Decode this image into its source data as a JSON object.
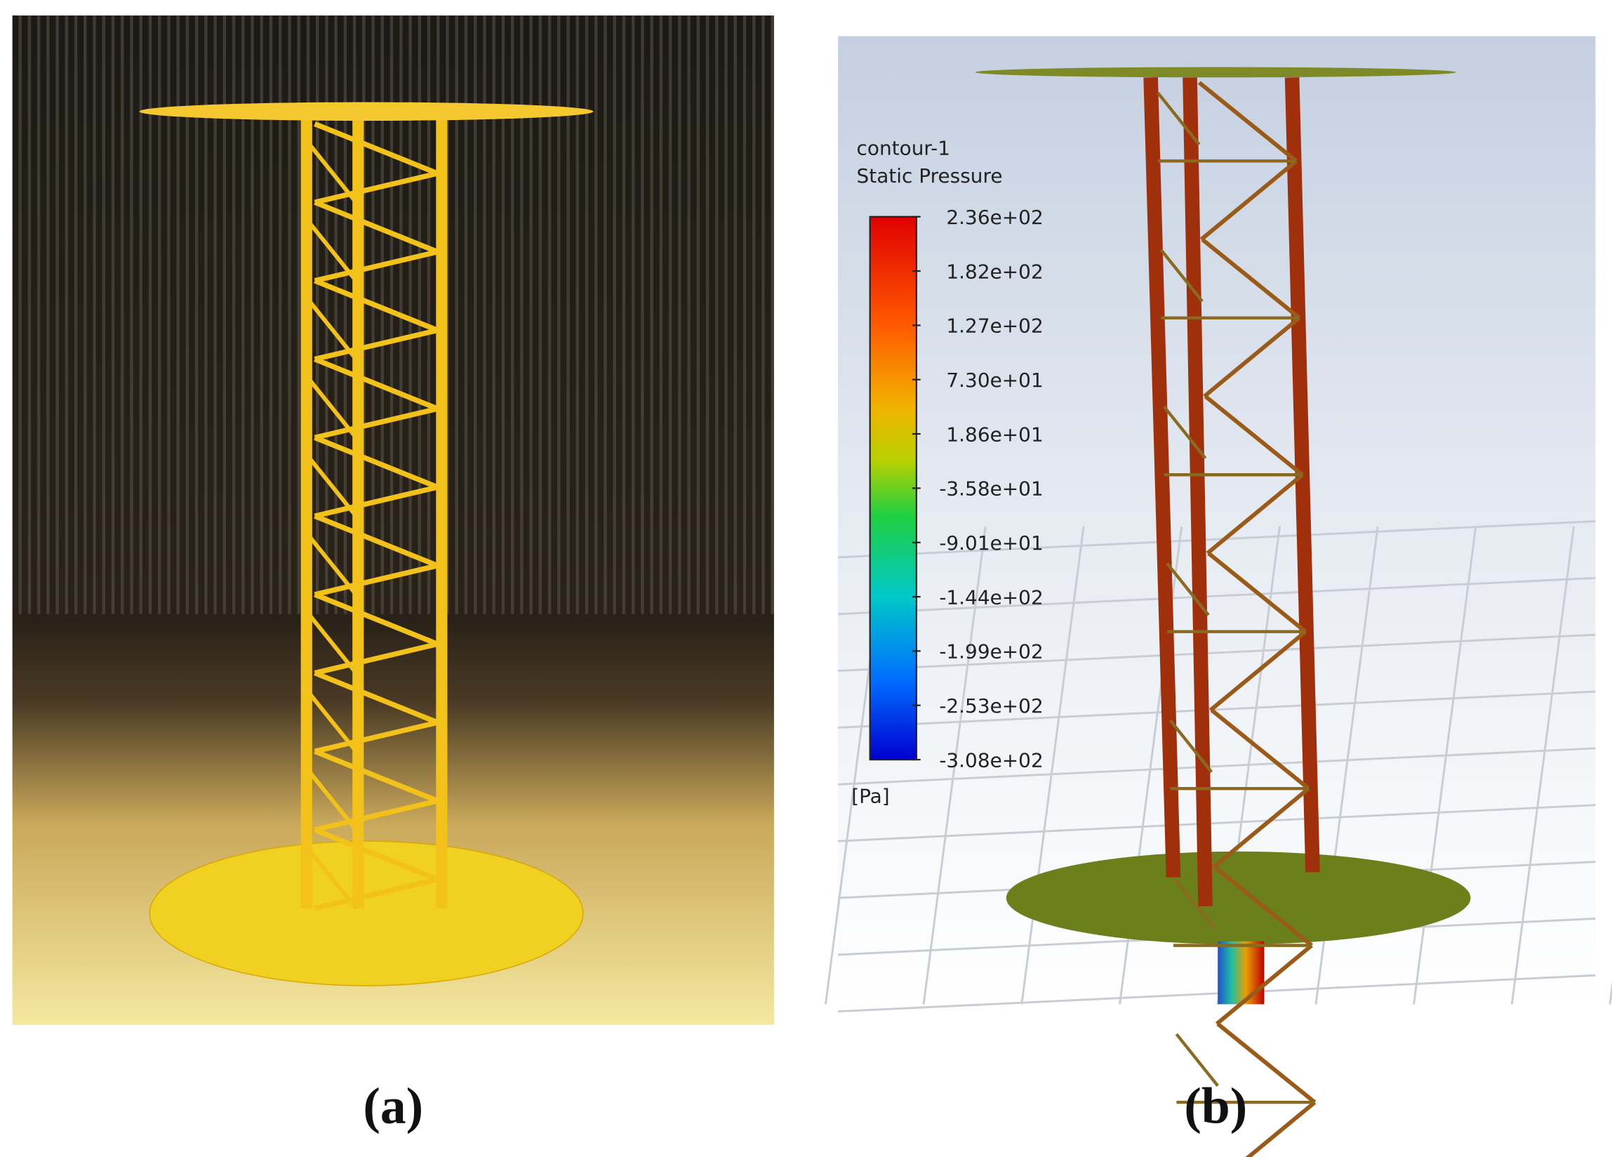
{
  "panels": [
    {
      "label": "(a)"
    },
    {
      "label": "(b)",
      "legend": {
        "title": "contour-1",
        "variable": "Static Pressure",
        "ticks": [
          "2.36e+02",
          "1.82e+02",
          "1.27e+02",
          "7.30e+01",
          "1.86e+01",
          "-3.58e+01",
          "-9.01e+01",
          "-1.44e+02",
          "-1.99e+02",
          "-2.53e+02",
          "-3.08e+02"
        ],
        "unit": "[Pa]"
      }
    }
  ]
}
